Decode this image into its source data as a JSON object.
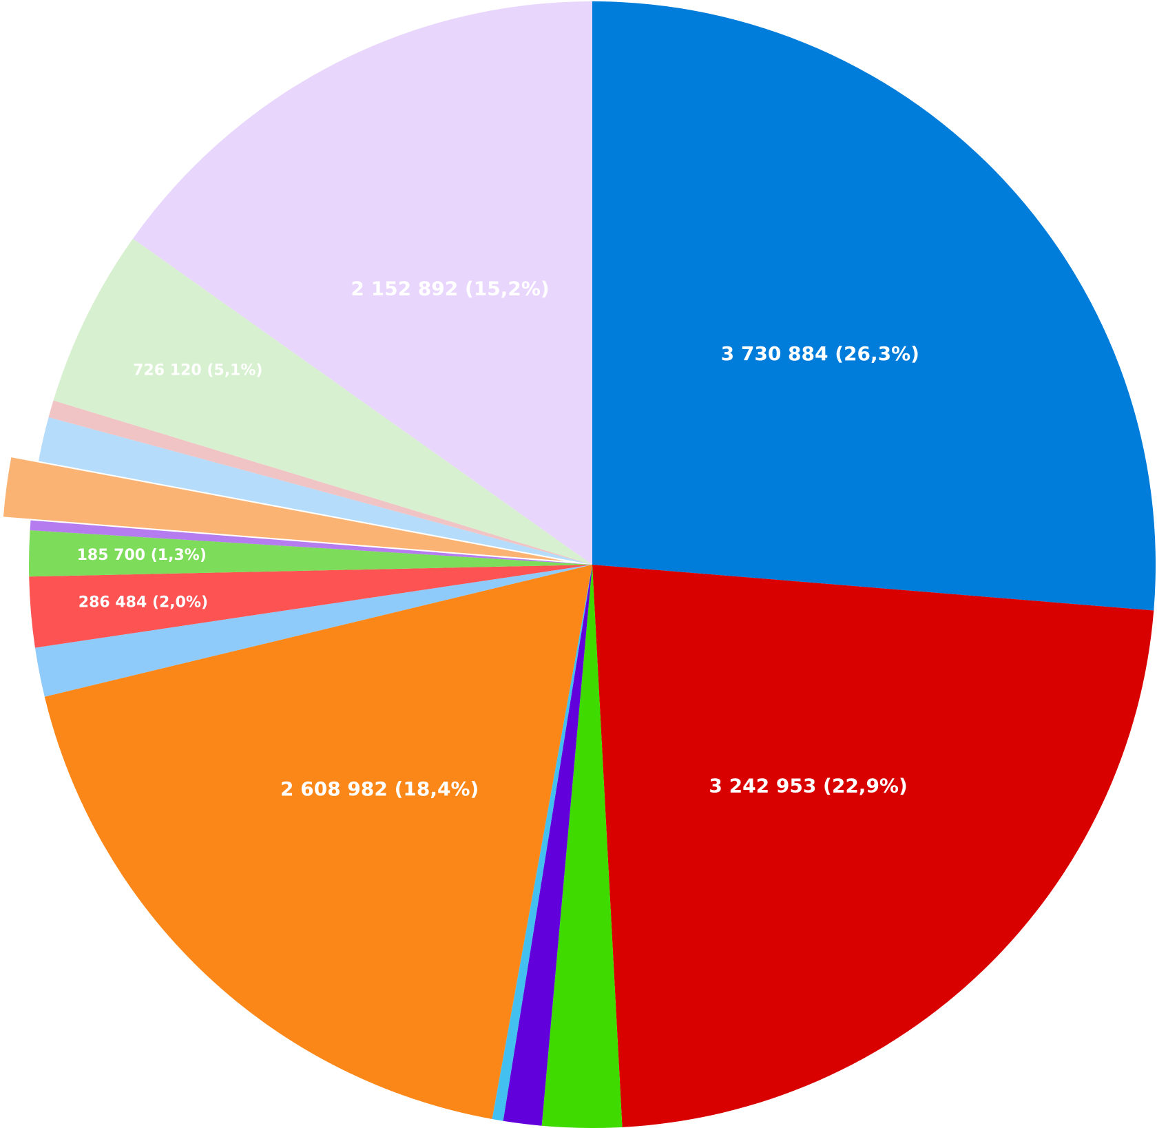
{
  "chart_data": {
    "type": "pie",
    "values": [
      3730884,
      3242953,
      323000,
      156000,
      45000,
      2608982,
      200000,
      286484,
      185700,
      40000,
      240000,
      180000,
      70000,
      726120,
      2152892
    ],
    "value_labels": [
      "3 730 884  (26,3%)",
      "3 242 953  (22,9%)",
      null,
      null,
      null,
      "2 608 982 (18,4%)",
      null,
      "286 484  (2,0%)",
      "185 700  (1,3%)",
      null,
      null,
      null,
      null,
      "726 120  (5,1%)",
      "2 152 892  (15,2%)"
    ],
    "colors": [
      "#007cdb",
      "#d90000",
      "#3fdb00",
      "#6200db",
      "#44c0f0",
      "#fc8719",
      "#8ecbfa",
      "#fd5353",
      "#7ddc59",
      "#b57cf0",
      "#fbb374",
      "#b5dcfb",
      "#f0c4c4",
      "#d7f0cf",
      "#e9d6fc"
    ],
    "exploded": [
      10
    ]
  }
}
